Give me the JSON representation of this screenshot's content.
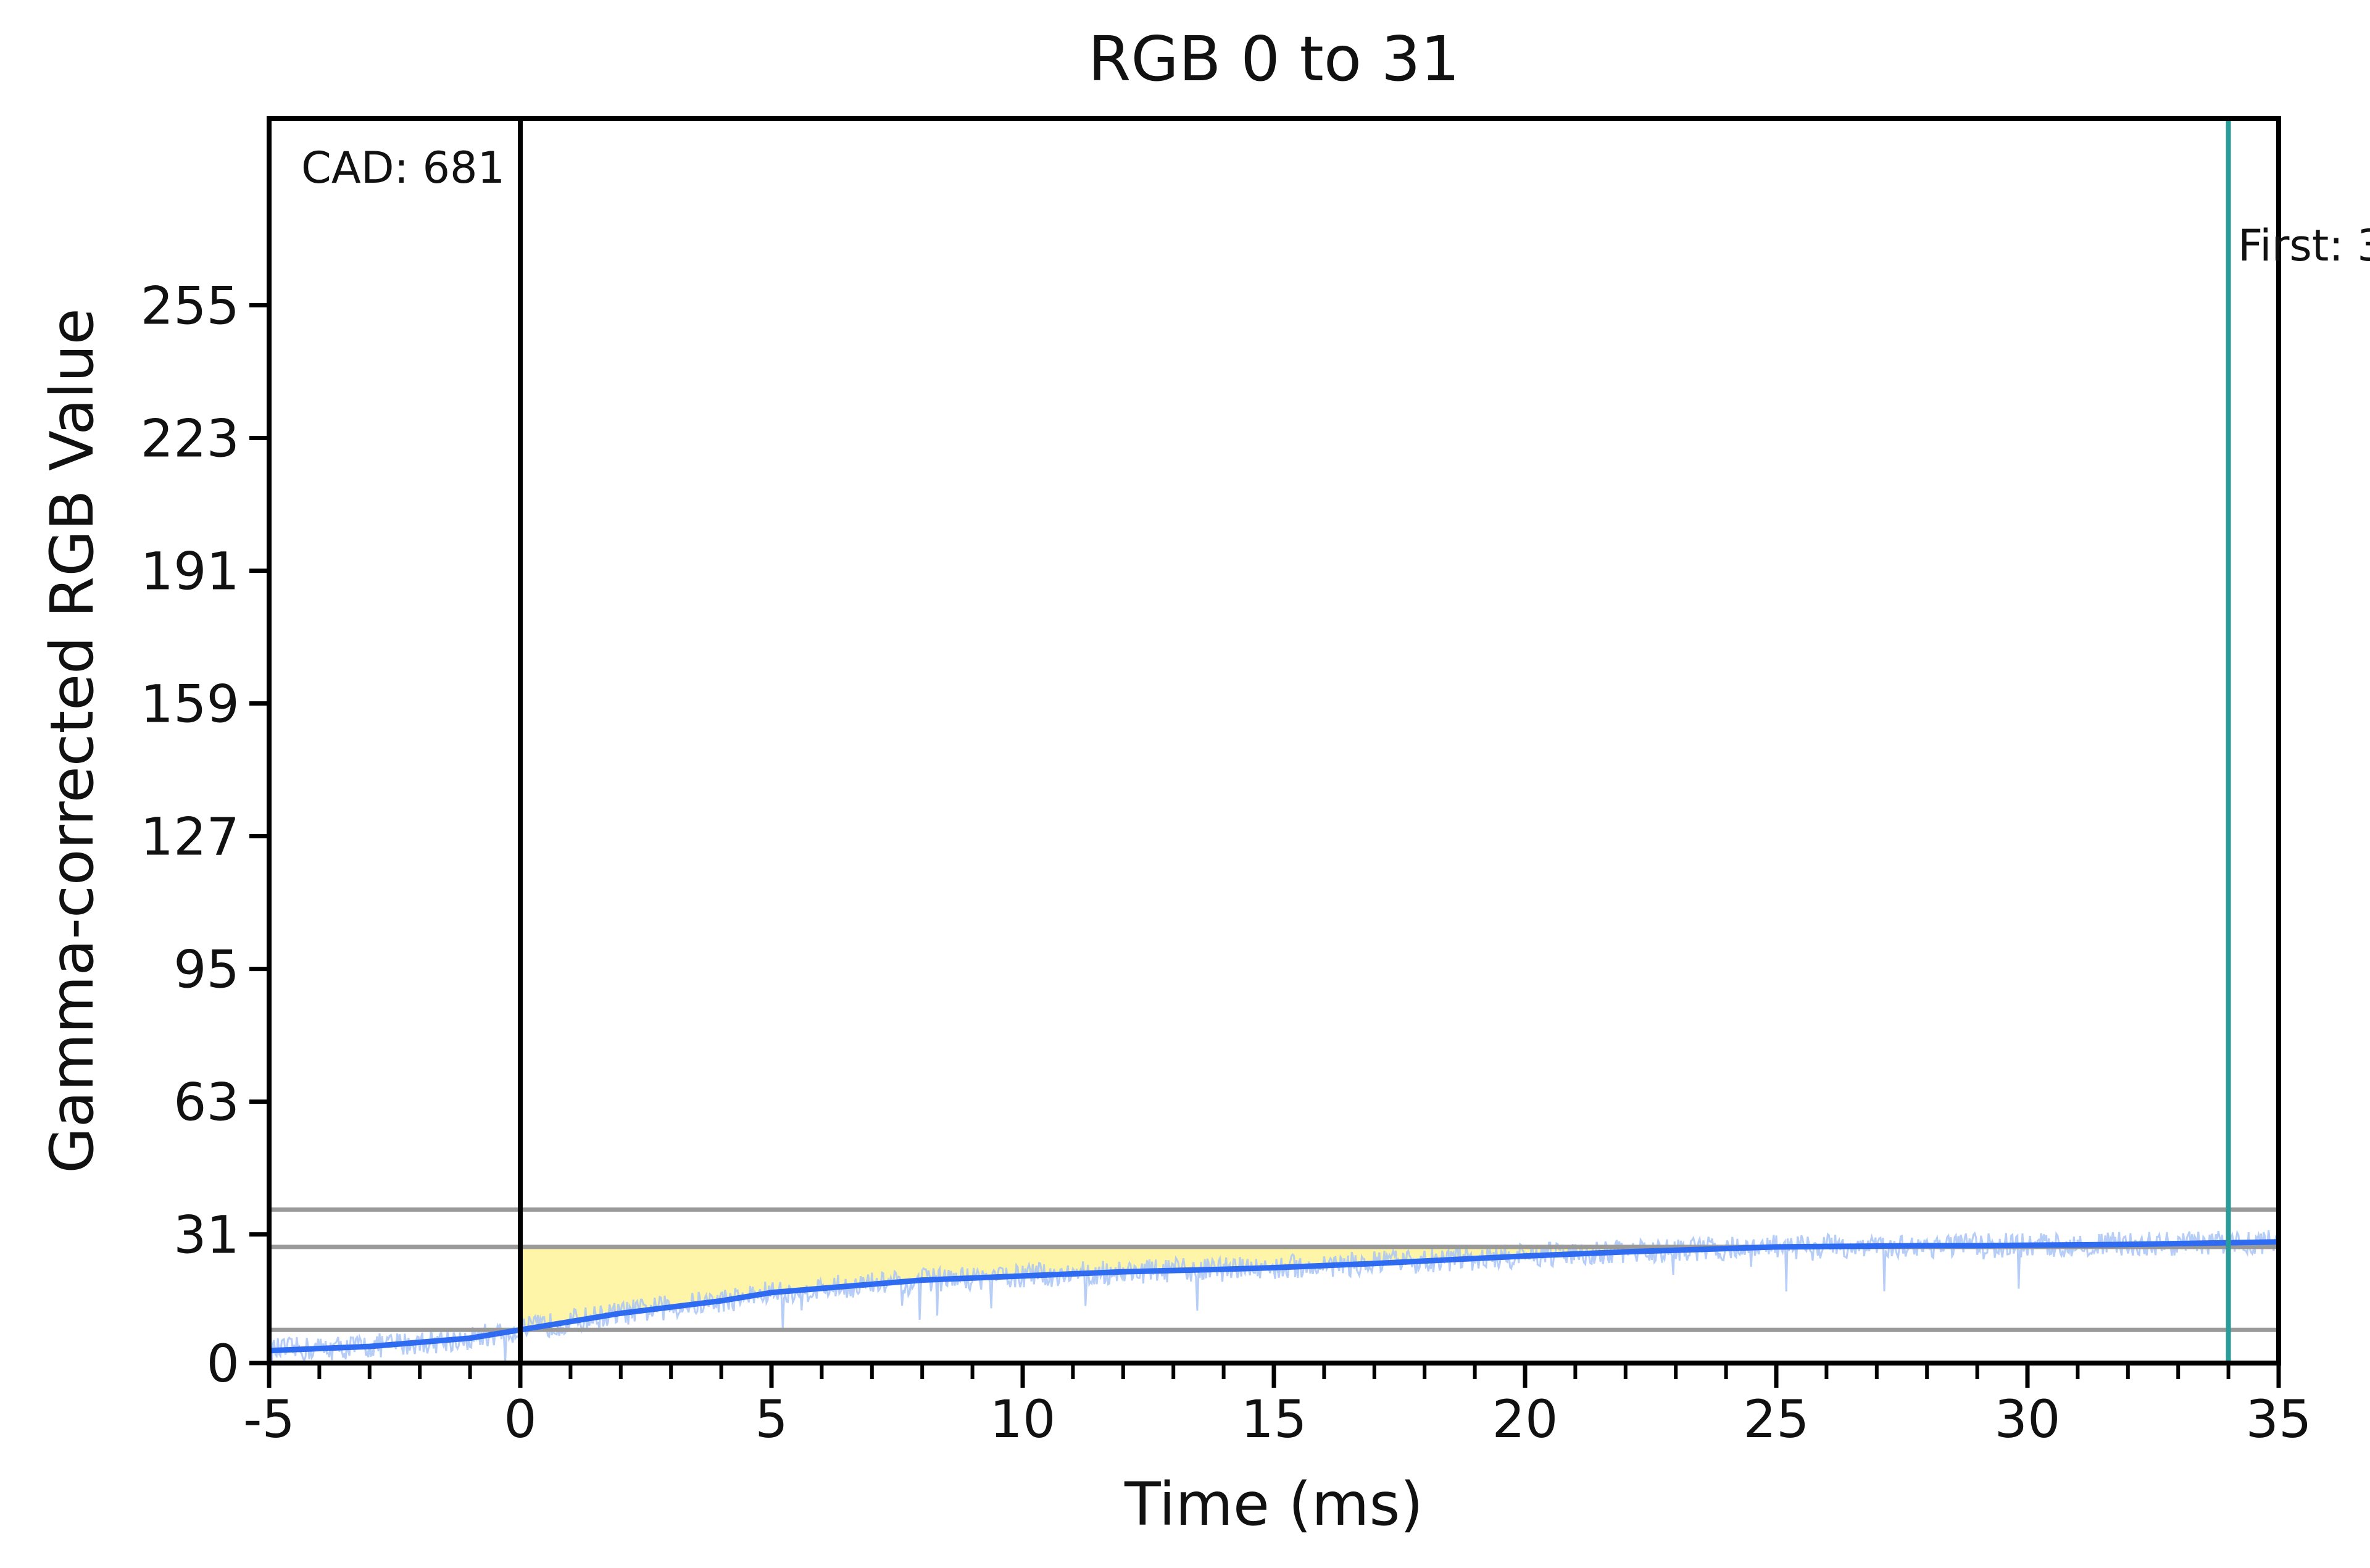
{
  "chart_data": {
    "type": "line",
    "title": "RGB 0 to 31",
    "xlabel": "Time (ms)",
    "ylabel": "Gamma-corrected RGB Value",
    "xlim": [
      -5,
      35
    ],
    "ylim": [
      0,
      300
    ],
    "x_ticks": [
      -5,
      0,
      5,
      10,
      15,
      20,
      25,
      30,
      35
    ],
    "x_minor_step": 1,
    "y_ticks": [
      0,
      31,
      63,
      95,
      127,
      159,
      191,
      223,
      255
    ],
    "grid": false,
    "reference_lines": {
      "upper_tolerance": 37,
      "target": 28,
      "lower_tolerance": 8
    },
    "vertical_markers": [
      {
        "x": 0,
        "color": "#000000"
      },
      {
        "x": 34,
        "color": "#2a9d9a"
      }
    ],
    "annotations": {
      "cad": "CAD: 681",
      "first": "First: 3"
    },
    "highlight_region": {
      "x_start": 0,
      "x_end": 34,
      "color": "#fff5a8"
    },
    "series": [
      {
        "color": "#2f6bf0",
        "x": [
          -5,
          -4,
          -3,
          -2,
          -1,
          0,
          1,
          2,
          3,
          4,
          5,
          6,
          7,
          8,
          9,
          10,
          11,
          12,
          13,
          14,
          15,
          16,
          17,
          18,
          19,
          20,
          21,
          22,
          23,
          24,
          25,
          26,
          27,
          28,
          29,
          30,
          31,
          32,
          33,
          34,
          35
        ],
        "values": [
          3,
          3.5,
          4,
          5,
          6,
          8,
          10,
          12,
          13.5,
          15,
          17,
          18,
          19,
          20,
          20.5,
          21,
          21.5,
          22,
          22.3,
          22.6,
          23,
          23.5,
          24,
          24.6,
          25.2,
          25.8,
          26.3,
          26.8,
          27.2,
          27.6,
          28,
          28.1,
          28.2,
          28.3,
          28.3,
          28.4,
          28.5,
          28.6,
          28.8,
          29,
          29.2
        ]
      }
    ],
    "raw_noise_color": "#a9c4f7"
  }
}
